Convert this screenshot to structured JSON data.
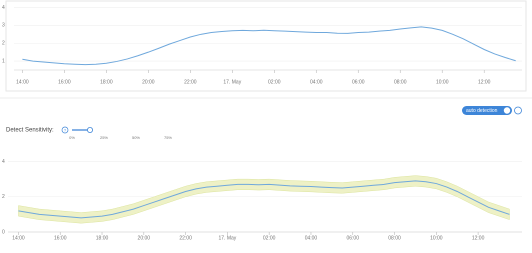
{
  "ui": {
    "toggle_label": "auto detection",
    "sensitivity_label": "Detect Sensitivity:",
    "help_icon": "?",
    "slider_marks": [
      "0%",
      "25%",
      "50%",
      "75%"
    ]
  },
  "chart_data": [
    {
      "type": "line",
      "x": [
        14,
        14.5,
        15,
        15.5,
        16,
        16.5,
        17,
        17.5,
        18,
        18.5,
        19,
        19.5,
        20,
        20.5,
        21,
        21.5,
        22,
        22.5,
        23,
        23.5,
        24,
        24.5,
        25,
        25.5,
        26,
        26.5,
        27,
        27.5,
        28,
        28.5,
        29,
        29.5,
        30,
        30.5,
        31,
        31.5,
        32,
        32.5,
        33,
        33.5,
        34,
        34.5,
        35,
        35.5,
        36,
        36.5,
        37,
        37.5
      ],
      "series": [
        {
          "color": "#6fa8dc",
          "values": [
            1.1,
            1.0,
            0.95,
            0.9,
            0.85,
            0.82,
            0.8,
            0.82,
            0.88,
            0.98,
            1.12,
            1.3,
            1.5,
            1.72,
            1.95,
            2.15,
            2.35,
            2.5,
            2.6,
            2.66,
            2.7,
            2.72,
            2.7,
            2.73,
            2.7,
            2.68,
            2.65,
            2.62,
            2.6,
            2.6,
            2.56,
            2.55,
            2.6,
            2.62,
            2.68,
            2.72,
            2.8,
            2.86,
            2.92,
            2.85,
            2.72,
            2.5,
            2.25,
            1.95,
            1.65,
            1.4,
            1.2,
            1.02
          ]
        }
      ],
      "xlim": [
        13.6,
        37.8
      ],
      "xticks": [
        {
          "value": 14,
          "label": "14:00"
        },
        {
          "value": 16,
          "label": "16:00"
        },
        {
          "value": 18,
          "label": "18:00"
        },
        {
          "value": 20,
          "label": "20:00"
        },
        {
          "value": 22,
          "label": "22:00"
        },
        {
          "value": 24,
          "label": "17. May"
        },
        {
          "value": 26,
          "label": "02:00"
        },
        {
          "value": 28,
          "label": "04:00"
        },
        {
          "value": 30,
          "label": "06:00"
        },
        {
          "value": 32,
          "label": "08:00"
        },
        {
          "value": 34,
          "label": "10:00"
        },
        {
          "value": 36,
          "label": "12:00"
        }
      ],
      "ylim": [
        0.5,
        4.2
      ],
      "yticks": [
        1,
        2,
        3,
        4
      ],
      "grid": true
    },
    {
      "type": "line",
      "x": [
        14,
        14.5,
        15,
        15.5,
        16,
        16.5,
        17,
        17.5,
        18,
        18.5,
        19,
        19.5,
        20,
        20.5,
        21,
        21.5,
        22,
        22.5,
        23,
        23.5,
        24,
        24.5,
        25,
        25.5,
        26,
        26.5,
        27,
        27.5,
        28,
        28.5,
        29,
        29.5,
        30,
        30.5,
        31,
        31.5,
        32,
        32.5,
        33,
        33.5,
        34,
        34.5,
        35,
        35.5,
        36,
        36.5,
        37,
        37.5
      ],
      "series": [
        {
          "color": "#6fa8dc",
          "values": [
            1.2,
            1.1,
            1.0,
            0.95,
            0.9,
            0.85,
            0.8,
            0.85,
            0.9,
            1.0,
            1.15,
            1.3,
            1.5,
            1.7,
            1.9,
            2.1,
            2.3,
            2.45,
            2.55,
            2.6,
            2.65,
            2.7,
            2.7,
            2.68,
            2.7,
            2.66,
            2.62,
            2.6,
            2.58,
            2.55,
            2.52,
            2.5,
            2.55,
            2.6,
            2.65,
            2.7,
            2.8,
            2.85,
            2.9,
            2.85,
            2.75,
            2.55,
            2.3,
            2.0,
            1.7,
            1.4,
            1.2,
            1.0
          ]
        }
      ],
      "band": {
        "color": "#eef1c6",
        "lower": [
          0.9,
          0.8,
          0.7,
          0.65,
          0.6,
          0.55,
          0.5,
          0.55,
          0.6,
          0.7,
          0.85,
          1.0,
          1.2,
          1.4,
          1.6,
          1.8,
          2.0,
          2.15,
          2.25,
          2.3,
          2.35,
          2.4,
          2.4,
          2.38,
          2.4,
          2.36,
          2.32,
          2.3,
          2.28,
          2.25,
          2.22,
          2.2,
          2.25,
          2.3,
          2.35,
          2.4,
          2.5,
          2.55,
          2.6,
          2.55,
          2.45,
          2.25,
          2.0,
          1.7,
          1.4,
          1.1,
          0.9,
          0.7
        ],
        "upper": [
          1.5,
          1.4,
          1.3,
          1.25,
          1.2,
          1.15,
          1.1,
          1.15,
          1.2,
          1.3,
          1.45,
          1.6,
          1.8,
          2.0,
          2.2,
          2.4,
          2.6,
          2.75,
          2.85,
          2.9,
          2.95,
          3.0,
          3.0,
          2.98,
          3.0,
          2.96,
          2.92,
          2.9,
          2.88,
          2.85,
          2.82,
          2.8,
          2.85,
          2.9,
          2.95,
          3.0,
          3.1,
          3.15,
          3.2,
          3.15,
          3.05,
          2.85,
          2.6,
          2.3,
          2.0,
          1.7,
          1.5,
          1.3
        ]
      },
      "xlim": [
        13.5,
        38.1
      ],
      "xticks": [
        {
          "value": 14,
          "label": "14:00"
        },
        {
          "value": 16,
          "label": "16:00"
        },
        {
          "value": 18,
          "label": "18:00"
        },
        {
          "value": 20,
          "label": "20:00"
        },
        {
          "value": 22,
          "label": "22:00"
        },
        {
          "value": 24,
          "label": "17. May"
        },
        {
          "value": 26,
          "label": "02:00"
        },
        {
          "value": 28,
          "label": "04:00"
        },
        {
          "value": 30,
          "label": "06:00"
        },
        {
          "value": 32,
          "label": "08:00"
        },
        {
          "value": 34,
          "label": "10:00"
        },
        {
          "value": 36,
          "label": "12:00"
        }
      ],
      "ylim": [
        0,
        4.2
      ],
      "yticks": [
        0,
        2,
        4
      ],
      "grid": true
    }
  ]
}
